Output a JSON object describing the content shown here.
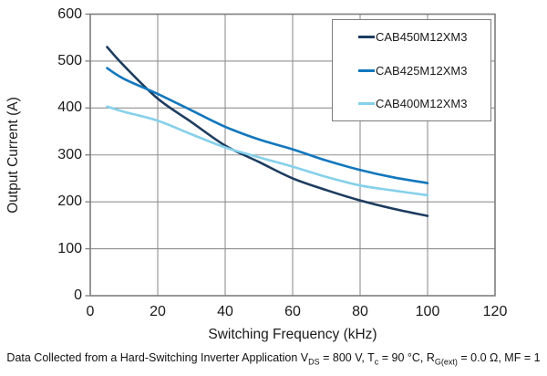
{
  "chart_data": {
    "type": "line",
    "title": "",
    "xlabel": "Switching Frequency (kHz)",
    "ylabel": "Output Current (A)",
    "xlim": [
      0,
      120
    ],
    "ylim": [
      0,
      600
    ],
    "x_ticks": [
      0,
      20,
      40,
      60,
      80,
      100,
      120
    ],
    "y_ticks": [
      0,
      100,
      200,
      300,
      400,
      500,
      600
    ],
    "grid": true,
    "legend_position": "top-right",
    "x": [
      5,
      10,
      20,
      30,
      40,
      50,
      60,
      70,
      80,
      90,
      100
    ],
    "series": [
      {
        "name": "CAB450M12XM3",
        "color": "#1d3c5f",
        "values": [
          530,
          490,
          420,
          370,
          320,
          285,
          250,
          225,
          203,
          185,
          170
        ]
      },
      {
        "name": "CAB425M12XM3",
        "color": "#1377bd",
        "values": [
          485,
          462,
          430,
          395,
          360,
          333,
          312,
          288,
          268,
          252,
          240
        ]
      },
      {
        "name": "CAB400M12XM3",
        "color": "#86d0ea",
        "values": [
          403,
          392,
          373,
          344,
          316,
          295,
          275,
          253,
          235,
          224,
          214
        ]
      }
    ],
    "caption_parts": [
      {
        "text": "Data Collected from a Hard-Switching Inverter Application V"
      },
      {
        "sub": "DS"
      },
      {
        "text": " = 800 V, T"
      },
      {
        "sub": "c"
      },
      {
        "text": " = 90 °C, R"
      },
      {
        "sub": "G(ext)"
      },
      {
        "text": " = 0.0 Ω, MF = 1"
      }
    ]
  },
  "styles": {
    "grid_color": "#909090",
    "frame_color": "#7d7d7d",
    "text_color": "#1a1a1a",
    "background": "#ffffff"
  }
}
